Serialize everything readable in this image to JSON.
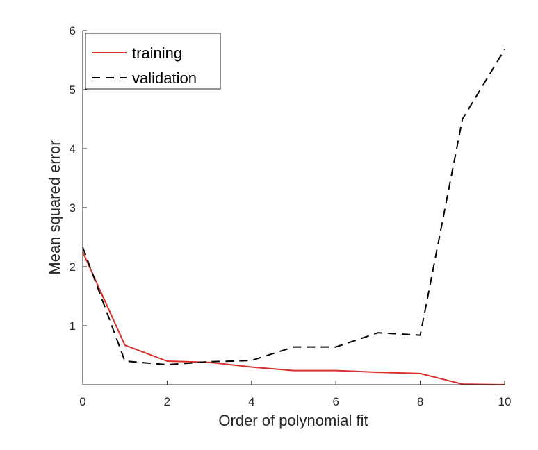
{
  "chart_data": {
    "type": "line",
    "xlabel": "Order of polynomial fit",
    "ylabel": "Mean squared error",
    "xlim": [
      0,
      10
    ],
    "ylim": [
      0,
      6
    ],
    "xticks": [
      "0",
      "2",
      "4",
      "6",
      "8",
      "10"
    ],
    "yticks": [
      "1",
      "2",
      "3",
      "4",
      "5",
      "6"
    ],
    "grid": false,
    "legend_position": "top-left",
    "x": [
      0,
      1,
      2,
      3,
      4,
      5,
      6,
      7,
      8,
      9,
      10
    ],
    "series": [
      {
        "name": "training",
        "color": "#d9302b",
        "style": "solid",
        "values": [
          2.25,
          0.67,
          0.4,
          0.38,
          0.3,
          0.24,
          0.24,
          0.21,
          0.19,
          0.01,
          0.0
        ]
      },
      {
        "name": "validation",
        "color": "#000000",
        "style": "dashed",
        "values": [
          2.33,
          0.4,
          0.34,
          0.39,
          0.41,
          0.64,
          0.64,
          0.88,
          0.84,
          4.5,
          5.68
        ]
      }
    ]
  }
}
